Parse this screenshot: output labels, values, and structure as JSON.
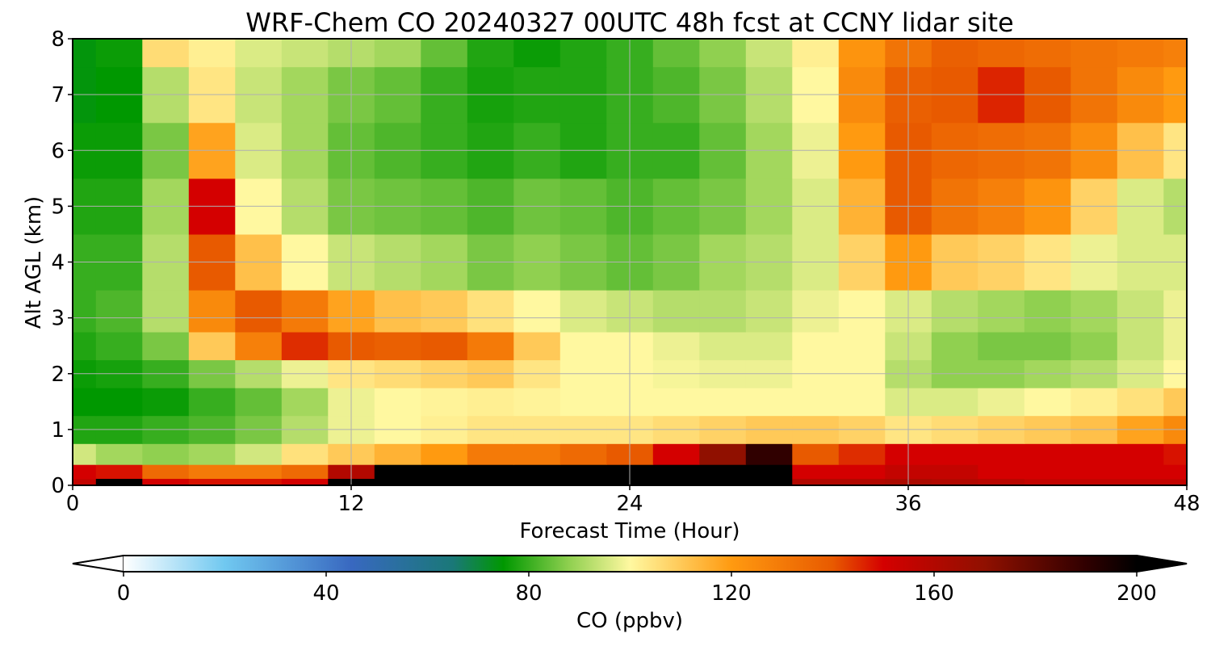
{
  "chart_data": {
    "type": "heatmap",
    "subtype": "filled-contour",
    "title": "WRF-Chem CO  20240327 00UTC 48h fcst at CCNY lidar site",
    "xlabel": "Forecast Time (Hour)",
    "ylabel": "Alt AGL (km)",
    "xlim": [
      0,
      48
    ],
    "ylim": [
      0,
      8
    ],
    "xticks": [
      "0",
      "12",
      "24",
      "36",
      "48"
    ],
    "yticks": [
      "0",
      "1",
      "2",
      "3",
      "4",
      "5",
      "6",
      "7",
      "8"
    ],
    "grid": true,
    "colorbar": {
      "label": "CO  (ppbv)",
      "range": [
        0,
        200
      ],
      "ticks": [
        "0",
        "40",
        "80",
        "120",
        "160",
        "200"
      ],
      "extend": "both",
      "orientation": "horizontal",
      "placement": "bottom",
      "colormap": [
        {
          "v": 0,
          "c": "#ffffff"
        },
        {
          "v": 20,
          "c": "#70c8f0"
        },
        {
          "v": 45,
          "c": "#3868c0"
        },
        {
          "v": 65,
          "c": "#1a7878"
        },
        {
          "v": 75,
          "c": "#009800"
        },
        {
          "v": 88,
          "c": "#90d050"
        },
        {
          "v": 100,
          "c": "#fff8a0"
        },
        {
          "v": 120,
          "c": "#ff9a10"
        },
        {
          "v": 140,
          "c": "#e85a00"
        },
        {
          "v": 150,
          "c": "#d40000"
        },
        {
          "v": 170,
          "c": "#901000"
        },
        {
          "v": 190,
          "c": "#300000"
        },
        {
          "v": 200,
          "c": "#000000"
        }
      ]
    },
    "x": [
      0,
      2,
      4,
      6,
      8,
      10,
      12,
      14,
      16,
      18,
      20,
      22,
      24,
      26,
      28,
      30,
      32,
      34,
      36,
      38,
      40,
      42,
      44,
      46,
      48
    ],
    "y": [
      0,
      0.25,
      0.5,
      1,
      1.5,
      2,
      2.5,
      3,
      4,
      5,
      6,
      7,
      8
    ],
    "z": [
      [
        155,
        200,
        150,
        148,
        148,
        150,
        200,
        200,
        200,
        200,
        200,
        200,
        200,
        200,
        200,
        200,
        160,
        160,
        162,
        160,
        158,
        155,
        155,
        155,
        155
      ],
      [
        150,
        148,
        135,
        130,
        130,
        135,
        160,
        200,
        200,
        200,
        200,
        200,
        200,
        200,
        200,
        200,
        150,
        150,
        155,
        155,
        150,
        150,
        150,
        150,
        150
      ],
      [
        95,
        90,
        88,
        90,
        95,
        105,
        110,
        115,
        120,
        130,
        130,
        135,
        140,
        150,
        170,
        190,
        140,
        145,
        150,
        150,
        150,
        150,
        150,
        150,
        148
      ],
      [
        78,
        78,
        80,
        82,
        86,
        92,
        98,
        100,
        102,
        104,
        104,
        104,
        104,
        106,
        108,
        110,
        110,
        108,
        104,
        106,
        108,
        110,
        112,
        118,
        125
      ],
      [
        75,
        75,
        76,
        80,
        84,
        90,
        98,
        100,
        101,
        102,
        101,
        100,
        100,
        100,
        100,
        100,
        100,
        100,
        96,
        96,
        98,
        100,
        102,
        105,
        110
      ],
      [
        76,
        77,
        80,
        86,
        92,
        98,
        104,
        106,
        108,
        110,
        104,
        100,
        100,
        99,
        98,
        98,
        100,
        100,
        92,
        88,
        88,
        90,
        92,
        96,
        100
      ],
      [
        78,
        80,
        86,
        110,
        128,
        145,
        140,
        138,
        140,
        130,
        110,
        100,
        100,
        98,
        96,
        96,
        100,
        100,
        94,
        88,
        86,
        86,
        88,
        94,
        98
      ],
      [
        80,
        82,
        92,
        125,
        140,
        130,
        118,
        112,
        110,
        105,
        100,
        96,
        94,
        92,
        92,
        94,
        98,
        100,
        96,
        92,
        90,
        88,
        90,
        94,
        98
      ],
      [
        80,
        80,
        92,
        140,
        112,
        100,
        94,
        92,
        90,
        86,
        88,
        86,
        84,
        86,
        90,
        92,
        96,
        108,
        120,
        110,
        108,
        104,
        98,
        96,
        96
      ],
      [
        78,
        78,
        90,
        150,
        100,
        92,
        86,
        85,
        84,
        82,
        85,
        84,
        82,
        84,
        86,
        90,
        96,
        115,
        140,
        132,
        128,
        122,
        108,
        96,
        92
      ],
      [
        76,
        76,
        86,
        118,
        96,
        90,
        84,
        82,
        80,
        78,
        80,
        78,
        80,
        80,
        84,
        90,
        98,
        120,
        140,
        136,
        134,
        132,
        124,
        112,
        104
      ],
      [
        74,
        75,
        92,
        104,
        94,
        90,
        86,
        84,
        80,
        77,
        78,
        78,
        80,
        82,
        86,
        92,
        100,
        125,
        138,
        140,
        146,
        140,
        132,
        125,
        120
      ],
      [
        74,
        76,
        106,
        102,
        96,
        94,
        92,
        90,
        84,
        78,
        76,
        78,
        80,
        84,
        88,
        94,
        102,
        122,
        132,
        138,
        136,
        134,
        132,
        130,
        128
      ]
    ]
  }
}
